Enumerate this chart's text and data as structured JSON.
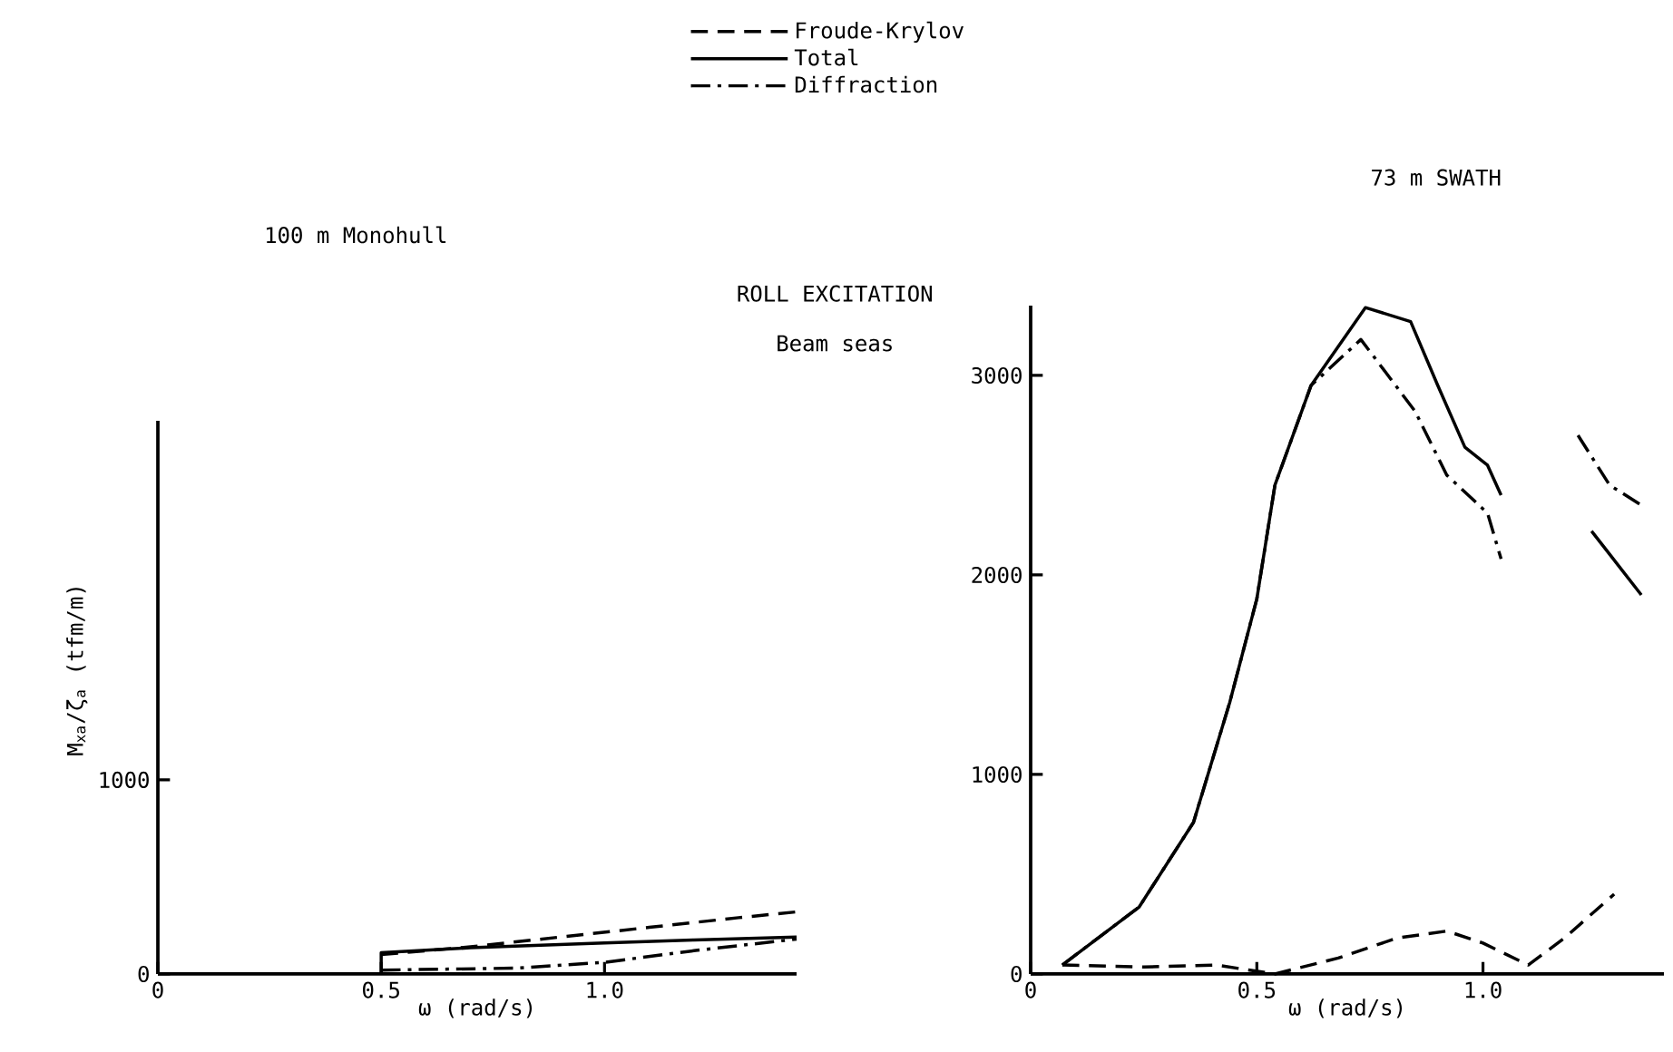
{
  "chart_data": [
    {
      "type": "line",
      "title": "100 m Monohull",
      "xlabel": "ω (rad/s)",
      "ylabel": "M$_{xa}$/ζ$_{a}$ (tfm/m)",
      "annotations": [
        "ROLL EXCITATION",
        "Beam seas"
      ],
      "xlim": [
        0,
        1.43
      ],
      "ylim": [
        0,
        2850
      ],
      "xticks": [
        0,
        0.5,
        {
          "value": 1.0,
          "label": "1.0"
        }
      ],
      "yticks": [
        0,
        1000
      ],
      "legend": "top",
      "grid": false,
      "series": [
        {
          "name": "Froude-Krylov",
          "color": "#000000",
          "line_style": "dashed",
          "x": [
            0.5,
            0.7,
            0.9,
            1.1,
            1.3,
            1.43
          ],
          "values": [
            100,
            140,
            190,
            240,
            290,
            320
          ]
        },
        {
          "name": "Total",
          "color": "#000000",
          "line_style": "solid",
          "x": [
            0.5,
            0.5,
            0.7,
            1.0,
            1.2,
            1.43
          ],
          "values": [
            0,
            110,
            135,
            160,
            175,
            190
          ]
        },
        {
          "name": "Diffraction",
          "color": "#000000",
          "line_style": "dashdot",
          "x": [
            0.5,
            0.8,
            1.0,
            1.2,
            1.43
          ],
          "values": [
            20,
            30,
            60,
            120,
            180
          ]
        }
      ]
    },
    {
      "type": "line",
      "title": "73 m SWATH",
      "xlabel": "ω (rad/s)",
      "xlim": [
        0,
        1.4
      ],
      "ylim": [
        0,
        3350
      ],
      "xticks": [
        0,
        0.5,
        {
          "value": 1.0,
          "label": "1.0"
        }
      ],
      "yticks": [
        0,
        1000,
        2000,
        3000
      ],
      "grid": false,
      "series": [
        {
          "color": "#000000",
          "line_style": "dashed",
          "x": [
            0.07,
            0.25,
            0.41,
            0.54,
            0.68,
            0.81,
            0.92,
            1.0,
            1.1,
            1.18,
            1.29
          ],
          "values": [
            45,
            35,
            45,
            0,
            80,
            180,
            215,
            155,
            45,
            180,
            400
          ]
        },
        {
          "color": "#000000",
          "line_style": "solid",
          "x": [
            0.07,
            0.24,
            0.36,
            0.44,
            0.5,
            0.54,
            0.62,
            0.74,
            0.84,
            0.9,
            0.96,
            1.01,
            1.04,
            1.14,
            1.24,
            1.35
          ],
          "values": [
            45,
            336,
            760,
            1360,
            1880,
            2450,
            2950,
            3340,
            3270,
            2950,
            2640,
            2550,
            2400,
            null,
            2220,
            1900
          ]
        },
        {
          "color": "#000000",
          "line_style": "dashdot",
          "x": [
            0.07,
            0.24,
            0.36,
            0.44,
            0.5,
            0.54,
            0.62,
            0.73,
            0.85,
            0.92,
            1.01,
            1.04,
            1.12,
            1.21,
            1.28,
            1.35
          ],
          "values": [
            45,
            336,
            760,
            1360,
            1880,
            2450,
            2950,
            3180,
            2820,
            2500,
            2310,
            2080,
            null,
            2700,
            2450,
            2350
          ]
        }
      ]
    }
  ]
}
